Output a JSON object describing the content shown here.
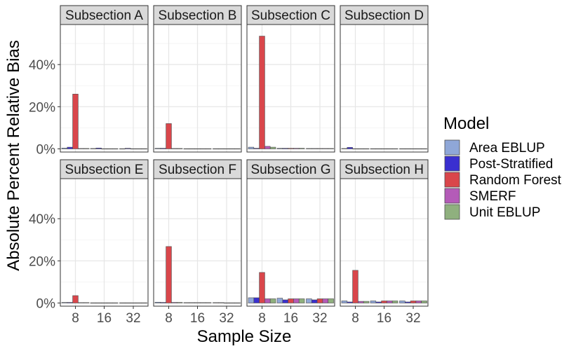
{
  "chart_data": {
    "type": "bar",
    "xlabel": "Sample Size",
    "ylabel": "Absolute Percent Relative Bias",
    "ylim": [
      -1.5,
      59
    ],
    "yticks": [
      0,
      20,
      40
    ],
    "ytick_labels": [
      "0%",
      "20%",
      "40%"
    ],
    "categories": [
      "8",
      "16",
      "32"
    ],
    "grid": true,
    "legend": {
      "title": "Model",
      "position": "right",
      "entries": [
        {
          "name": "Area EBLUP",
          "color": "#8fa7d8"
        },
        {
          "name": "Post-Stratified",
          "color": "#3a2fd0"
        },
        {
          "name": "Random Forest",
          "color": "#d9464b"
        },
        {
          "name": "SMERF",
          "color": "#b45bb8"
        },
        {
          "name": "Unit EBLUP",
          "color": "#8fb07e"
        }
      ]
    },
    "panels": [
      {
        "title": "Subsection A",
        "values": {
          "8": [
            0.4,
            0.8,
            26.0,
            0.2,
            0.2
          ],
          "16": [
            0.2,
            0.4,
            0.1,
            0.1,
            0.1
          ],
          "32": [
            0.1,
            0.3,
            0.1,
            0.1,
            0.1
          ]
        }
      },
      {
        "title": "Subsection B",
        "values": {
          "8": [
            0.3,
            0.3,
            12.0,
            0.2,
            0.2
          ],
          "16": [
            0.1,
            0.1,
            0.1,
            0.1,
            0.1
          ],
          "32": [
            0.1,
            0.1,
            0.1,
            0.1,
            0.1
          ]
        }
      },
      {
        "title": "Subsection C",
        "values": {
          "8": [
            0.8,
            0.3,
            53.5,
            1.2,
            0.8
          ],
          "16": [
            0.3,
            0.3,
            0.3,
            0.3,
            0.3
          ],
          "32": [
            0.2,
            0.2,
            0.2,
            0.2,
            0.2
          ]
        }
      },
      {
        "title": "Subsection D",
        "values": {
          "8": [
            0.2,
            0.7,
            0.1,
            0.1,
            0.1
          ],
          "16": [
            0.1,
            0.1,
            0.1,
            0.1,
            0.1
          ],
          "32": [
            0.1,
            0.1,
            0.1,
            0.1,
            0.1
          ]
        }
      },
      {
        "title": "Subsection E",
        "values": {
          "8": [
            0.3,
            0.3,
            3.5,
            0.2,
            0.2
          ],
          "16": [
            0.1,
            0.1,
            0.1,
            0.1,
            0.1
          ],
          "32": [
            0.1,
            0.1,
            0.1,
            0.1,
            0.1
          ]
        }
      },
      {
        "title": "Subsection F",
        "values": {
          "8": [
            0.4,
            0.3,
            26.8,
            0.3,
            0.3
          ],
          "16": [
            0.2,
            0.2,
            0.2,
            0.2,
            0.2
          ],
          "32": [
            0.2,
            0.2,
            0.1,
            0.1,
            0.1
          ]
        }
      },
      {
        "title": "Subsection G",
        "values": {
          "8": [
            2.5,
            2.5,
            14.5,
            2.0,
            2.0
          ],
          "16": [
            2.3,
            1.5,
            2.0,
            2.0,
            2.0
          ],
          "32": [
            2.0,
            1.5,
            2.0,
            2.0,
            2.0
          ]
        }
      },
      {
        "title": "Subsection H",
        "values": {
          "8": [
            1.0,
            0.5,
            15.5,
            0.8,
            0.8
          ],
          "16": [
            1.0,
            0.5,
            1.0,
            1.0,
            1.0
          ],
          "32": [
            1.0,
            0.5,
            1.0,
            1.0,
            1.0
          ]
        }
      }
    ]
  }
}
